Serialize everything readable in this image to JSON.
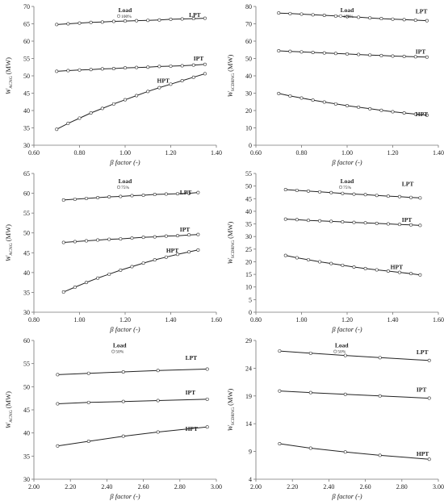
{
  "chart_data": [
    {
      "type": "line",
      "ylabel_main": "W",
      "ylabel_sub": "ACNG",
      "ylabel_unit": "(MW)",
      "xlabel": "β factor (-)",
      "xlim": [
        0.6,
        1.4
      ],
      "xticks": [
        "0.60",
        "0.80",
        "1.00",
        "1.20",
        "1.40"
      ],
      "ylim": [
        30,
        70
      ],
      "yticks": [
        "30",
        "35",
        "40",
        "45",
        "50",
        "55",
        "60",
        "65",
        "70"
      ],
      "legend_title": "Load",
      "legend_marker_label": "100%",
      "series": [
        {
          "name": "LPT",
          "x": [
            0.7,
            0.75,
            0.8,
            0.85,
            0.9,
            0.95,
            1.0,
            1.05,
            1.1,
            1.15,
            1.2,
            1.25,
            1.3,
            1.35
          ],
          "y": [
            64.8,
            65.0,
            65.2,
            65.4,
            65.5,
            65.7,
            65.8,
            65.9,
            66.0,
            66.1,
            66.3,
            66.4,
            66.5,
            66.6
          ]
        },
        {
          "name": "IPT",
          "x": [
            0.7,
            0.75,
            0.8,
            0.85,
            0.9,
            0.95,
            1.0,
            1.05,
            1.1,
            1.15,
            1.2,
            1.25,
            1.3,
            1.35
          ],
          "y": [
            51.3,
            51.5,
            51.7,
            51.8,
            52.0,
            52.1,
            52.3,
            52.4,
            52.5,
            52.7,
            52.8,
            52.9,
            53.1,
            53.3
          ]
        },
        {
          "name": "HPT",
          "x": [
            0.7,
            0.75,
            0.8,
            0.85,
            0.9,
            0.95,
            1.0,
            1.05,
            1.1,
            1.15,
            1.2,
            1.25,
            1.3,
            1.35
          ],
          "y": [
            34.6,
            36.3,
            37.8,
            39.3,
            40.6,
            41.9,
            43.1,
            44.3,
            45.5,
            46.6,
            47.6,
            48.6,
            49.6,
            50.6
          ]
        }
      ]
    },
    {
      "type": "line",
      "ylabel_main": "W",
      "ylabel_sub": "SCDRNG",
      "ylabel_unit": "(MW)",
      "xlabel": "β factor (-)",
      "xlim": [
        0.6,
        1.4
      ],
      "xticks": [
        "0.60",
        "0.80",
        "1.00",
        "1.20",
        "1.40"
      ],
      "ylim": [
        0,
        80
      ],
      "yticks": [
        "0",
        "10",
        "20",
        "30",
        "40",
        "50",
        "60",
        "70",
        "80"
      ],
      "legend_title": "Load",
      "legend_marker_label": "100%",
      "series": [
        {
          "name": "LPT",
          "x": [
            0.7,
            0.75,
            0.8,
            0.85,
            0.9,
            0.95,
            1.0,
            1.05,
            1.1,
            1.15,
            1.2,
            1.25,
            1.3,
            1.35
          ],
          "y": [
            76.2,
            75.9,
            75.6,
            75.2,
            74.9,
            74.5,
            74.1,
            73.8,
            73.4,
            73.0,
            72.7,
            72.4,
            72.1,
            71.8
          ]
        },
        {
          "name": "IPT",
          "x": [
            0.7,
            0.75,
            0.8,
            0.85,
            0.9,
            0.95,
            1.0,
            1.05,
            1.1,
            1.15,
            1.2,
            1.25,
            1.3,
            1.35
          ],
          "y": [
            54.4,
            54.1,
            53.8,
            53.5,
            53.2,
            52.9,
            52.6,
            52.3,
            52.0,
            51.7,
            51.4,
            51.2,
            51.0,
            50.8
          ]
        },
        {
          "name": "HPT",
          "x": [
            0.7,
            0.75,
            0.8,
            0.85,
            0.9,
            0.95,
            1.0,
            1.05,
            1.1,
            1.15,
            1.2,
            1.25,
            1.3,
            1.35
          ],
          "y": [
            29.8,
            28.4,
            27.2,
            26.0,
            24.9,
            23.8,
            22.8,
            21.9,
            21.0,
            20.1,
            19.3,
            18.6,
            17.9,
            17.3
          ]
        }
      ]
    },
    {
      "type": "line",
      "ylabel_main": "W",
      "ylabel_sub": "ACNG",
      "ylabel_unit": "(MW)",
      "xlabel": "β factor (-)",
      "xlim": [
        0.8,
        1.6
      ],
      "xticks": [
        "0.80",
        "1.00",
        "1.20",
        "1.40",
        "1.60"
      ],
      "ylim": [
        30,
        65
      ],
      "yticks": [
        "30",
        "35",
        "40",
        "45",
        "50",
        "55",
        "60",
        "65"
      ],
      "legend_title": "Load",
      "legend_marker_label": "75%",
      "series": [
        {
          "name": "LPT",
          "x": [
            0.93,
            0.98,
            1.03,
            1.08,
            1.13,
            1.18,
            1.23,
            1.28,
            1.33,
            1.38,
            1.43,
            1.48,
            1.52
          ],
          "y": [
            58.3,
            58.5,
            58.7,
            58.9,
            59.1,
            59.2,
            59.4,
            59.5,
            59.7,
            59.8,
            59.9,
            60.0,
            60.2
          ]
        },
        {
          "name": "IPT",
          "x": [
            0.93,
            0.98,
            1.03,
            1.08,
            1.13,
            1.18,
            1.23,
            1.28,
            1.33,
            1.38,
            1.43,
            1.48,
            1.52
          ],
          "y": [
            47.6,
            47.8,
            48.0,
            48.2,
            48.4,
            48.5,
            48.7,
            48.9,
            49.0,
            49.2,
            49.3,
            49.5,
            49.6
          ]
        },
        {
          "name": "HPT",
          "x": [
            0.93,
            0.98,
            1.03,
            1.08,
            1.13,
            1.18,
            1.23,
            1.28,
            1.33,
            1.38,
            1.43,
            1.48,
            1.52
          ],
          "y": [
            35.1,
            36.3,
            37.5,
            38.6,
            39.6,
            40.6,
            41.5,
            42.4,
            43.2,
            43.9,
            44.6,
            45.2,
            45.7
          ]
        }
      ]
    },
    {
      "type": "line",
      "ylabel_main": "W",
      "ylabel_sub": "SCDRNG",
      "ylabel_unit": "(MW)",
      "xlabel": "β factor (-)",
      "xlim": [
        0.8,
        1.6
      ],
      "xticks": [
        "0.80",
        "1.00",
        "1.20",
        "1.40",
        "1.60"
      ],
      "ylim": [
        0,
        55
      ],
      "yticks": [
        "0",
        "5",
        "10",
        "15",
        "20",
        "25",
        "30",
        "35",
        "40",
        "45",
        "50",
        "55"
      ],
      "legend_title": "Load",
      "legend_marker_label": "75%",
      "series": [
        {
          "name": "LPT",
          "x": [
            0.93,
            0.98,
            1.03,
            1.08,
            1.13,
            1.18,
            1.23,
            1.28,
            1.33,
            1.38,
            1.43,
            1.48,
            1.52
          ],
          "y": [
            48.6,
            48.3,
            48.0,
            47.7,
            47.4,
            47.1,
            46.8,
            46.6,
            46.3,
            46.0,
            45.8,
            45.5,
            45.3
          ]
        },
        {
          "name": "IPT",
          "x": [
            0.93,
            0.98,
            1.03,
            1.08,
            1.13,
            1.18,
            1.23,
            1.28,
            1.33,
            1.38,
            1.43,
            1.48,
            1.52
          ],
          "y": [
            36.9,
            36.7,
            36.4,
            36.2,
            36.0,
            35.8,
            35.6,
            35.4,
            35.2,
            35.0,
            34.8,
            34.6,
            34.4
          ]
        },
        {
          "name": "HPT",
          "x": [
            0.93,
            0.98,
            1.03,
            1.08,
            1.13,
            1.18,
            1.23,
            1.28,
            1.33,
            1.38,
            1.43,
            1.48,
            1.52
          ],
          "y": [
            22.5,
            21.6,
            20.8,
            20.0,
            19.3,
            18.6,
            17.9,
            17.3,
            16.8,
            16.3,
            15.8,
            15.3,
            14.8
          ]
        }
      ]
    },
    {
      "type": "line",
      "ylabel_main": "W",
      "ylabel_sub": "ACNG",
      "ylabel_unit": "(MW)",
      "xlabel": "β factor (-)",
      "xlim": [
        2.0,
        3.0
      ],
      "xticks": [
        "2.00",
        "2.20",
        "2.40",
        "2.60",
        "2.80",
        "3.00"
      ],
      "ylim": [
        30,
        60
      ],
      "yticks": [
        "30",
        "35",
        "40",
        "45",
        "50",
        "55",
        "60"
      ],
      "legend_title": "Load",
      "legend_marker_label": "50%",
      "series": [
        {
          "name": "LPT",
          "x": [
            2.13,
            2.3,
            2.49,
            2.68,
            2.95
          ],
          "y": [
            52.6,
            52.9,
            53.2,
            53.5,
            53.8
          ]
        },
        {
          "name": "IPT",
          "x": [
            2.13,
            2.3,
            2.49,
            2.68,
            2.95
          ],
          "y": [
            46.3,
            46.6,
            46.8,
            47.0,
            47.3
          ]
        },
        {
          "name": "HPT",
          "x": [
            2.13,
            2.3,
            2.49,
            2.68,
            2.95
          ],
          "y": [
            37.2,
            38.2,
            39.3,
            40.2,
            41.3
          ]
        }
      ]
    },
    {
      "type": "line",
      "ylabel_main": "W",
      "ylabel_sub": "SCDRNG",
      "ylabel_unit": "(MW)",
      "xlabel": "β factor (-)",
      "xlim": [
        2.0,
        3.0
      ],
      "xticks": [
        "2.00",
        "2.20",
        "2.40",
        "2.60",
        "2.80",
        "3.00"
      ],
      "ylim": [
        4,
        29
      ],
      "yticks": [
        "4",
        "9",
        "14",
        "19",
        "24",
        "29"
      ],
      "legend_title": "Load",
      "legend_marker_label": "50%",
      "series": [
        {
          "name": "LPT",
          "x": [
            2.13,
            2.3,
            2.49,
            2.68,
            2.95
          ],
          "y": [
            27.1,
            26.7,
            26.3,
            25.9,
            25.4
          ]
        },
        {
          "name": "IPT",
          "x": [
            2.13,
            2.3,
            2.49,
            2.68,
            2.95
          ],
          "y": [
            19.9,
            19.6,
            19.3,
            19.0,
            18.6
          ]
        },
        {
          "name": "HPT",
          "x": [
            2.13,
            2.3,
            2.49,
            2.68,
            2.95
          ],
          "y": [
            10.4,
            9.6,
            8.9,
            8.3,
            7.6
          ]
        }
      ]
    }
  ]
}
